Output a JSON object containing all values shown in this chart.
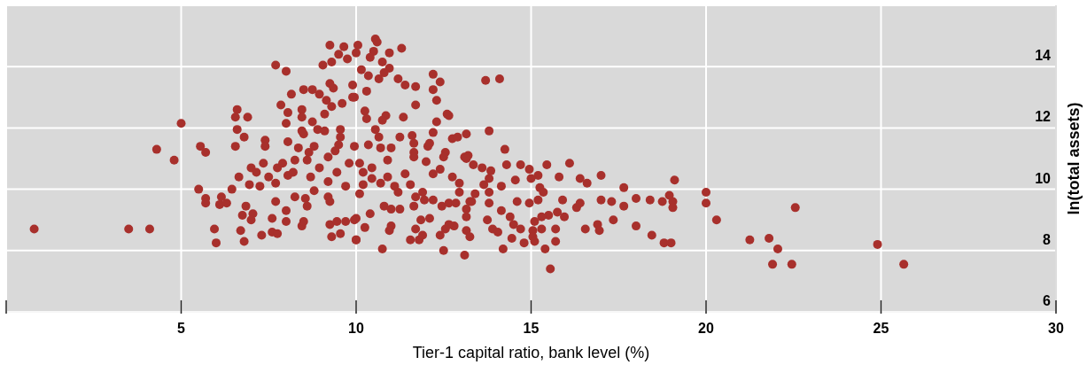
{
  "chart_data": {
    "type": "scatter",
    "xlabel": "Tier-1 capital ratio, bank level (%)",
    "ylabel": "ln(total assets)",
    "color": "#a8302c",
    "marker": "circle",
    "grid": true,
    "xlim": [
      0,
      30
    ],
    "ylim": [
      6,
      16
    ],
    "xticks": [
      {
        "value": 0,
        "label": null
      },
      5,
      10,
      15,
      20,
      25,
      30
    ],
    "yticks": [
      6,
      8,
      10,
      12,
      14,
      {
        "value": 16,
        "label": null
      }
    ],
    "x": [
      0.8,
      3.5,
      4.1,
      4.3,
      4.8,
      5.0,
      5.5,
      5.55,
      5.7,
      5.7,
      5.7,
      5.95,
      6.0,
      6.1,
      6.15,
      6.3,
      6.45,
      6.65,
      6.85,
      6.75,
      7.05,
      7.0,
      6.7,
      6.8,
      7.3,
      7.0,
      7.15,
      6.95,
      7.25,
      7.35,
      7.6,
      7.75,
      7.6,
      7.7,
      8.0,
      8.45,
      8.5,
      9.25,
      9.3,
      9.55,
      10.0,
      7.7,
      8.0,
      8.6,
      8.25,
      9.45,
      9.7,
      9.95,
      9.2,
      7.75,
      8.05,
      8.25,
      8.6,
      6.55,
      6.6,
      6.55,
      6.9,
      6.6,
      6.8,
      7.4,
      7.4,
      7.7,
      8.0,
      8.15,
      7.85,
      8.05,
      8.0,
      8.5,
      8.35,
      8.8,
      8.5,
      8.75,
      8.95,
      9.15,
      9.3,
      9.25,
      9.35,
      8.45,
      8.45,
      8.75,
      8.9,
      9.1,
      9.1,
      9.6,
      9.9,
      9.9,
      9.55,
      9.55,
      9.5,
      9.4,
      9.25,
      9.5,
      9.65,
      9.75,
      9.05,
      9.3,
      10.0,
      10.05,
      10.15,
      8.65,
      9.2,
      10.55,
      10.6,
      10.5,
      10.95,
      11.3,
      10.4,
      10.75,
      10.95,
      10.8,
      10.35,
      10.65,
      11.2,
      11.4,
      11.7,
      12.2,
      12.4,
      12.2,
      12.3,
      11.7,
      13.7,
      14.1,
      10.3,
      9.95,
      10.25,
      10.3,
      10.85,
      10.75,
      11.35,
      12.6,
      12.65,
      12.3,
      13.8,
      10.55,
      10.65,
      11.25,
      11.6,
      11.65,
      12.2,
      12.75,
      12.9,
      13.15,
      14.25,
      12.05,
      12.1,
      11.65,
      11.0,
      10.7,
      10.35,
      9.95,
      12.55,
      13.2,
      13.1,
      10.1,
      10.9,
      11.65,
      12.0,
      12.5,
      13.15,
      13.35,
      13.6,
      13.85,
      14.3,
      14.7,
      14.95,
      15.45,
      16.1,
      15.2,
      15.0,
      15.8,
      16.4,
      16.6,
      17.0,
      17.65,
      19.1,
      18.0,
      18.4,
      18.75,
      18.95,
      19.05,
      19.05,
      17.65,
      17.3,
      17.0,
      16.3,
      16.4,
      15.9,
      15.2,
      14.95,
      14.6,
      13.8,
      13.25,
      17.35,
      16.9,
      16.55,
      16.95,
      18.0,
      18.45,
      18.8,
      19.0,
      15.5,
      15.75,
      15.95,
      15.3,
      15.1,
      15.3,
      15.7,
      15.05,
      15.05,
      15.1,
      15.7,
      15.4,
      15.55,
      14.8,
      14.45,
      14.7,
      14.5,
      14.4,
      14.15,
      13.75,
      13.9,
      14.05,
      14.2,
      13.1,
      12.5,
      13.15,
      13.25,
      13.15,
      13.15,
      13.3,
      13.4,
      12.8,
      12.55,
      12.4,
      12.65,
      11.55,
      11.8,
      11.9,
      11.7,
      11.85,
      12.1,
      11.0,
      10.95,
      10.75,
      10.25,
      10.0,
      10.4,
      10.0,
      10.8,
      11.0,
      11.25,
      11.65,
      12.2,
      12.45,
      12.65,
      12.85,
      12.95,
      11.9,
      11.95,
      11.7,
      11.2,
      11.1,
      10.7,
      10.45,
      10.2,
      10.1,
      11.55,
      12.2,
      12.4,
      12.75,
      12.95,
      13.65,
      13.8,
      13.8,
      14.15,
      14.55,
      15.25,
      15.35,
      11.4,
      10.9,
      20.0,
      20.0,
      20.3,
      22.55,
      21.25,
      21.8,
      22.05,
      21.9,
      22.45,
      24.9,
      25.65,
      7.5,
      7.9,
      8.2,
      8.7,
      8.95,
      9.2,
      9.45,
      9.7,
      8.8,
      8.55,
      9.25,
      9.8,
      10.2,
      10.45,
      8.05,
      8.45
    ],
    "values": [
      8.7,
      8.7,
      8.7,
      11.3,
      10.95,
      12.15,
      10.0,
      11.4,
      9.7,
      11.2,
      9.55,
      8.7,
      8.25,
      9.5,
      9.75,
      9.55,
      10.0,
      10.4,
      9.45,
      9.15,
      9.2,
      9.0,
      8.65,
      8.3,
      8.5,
      10.7,
      10.55,
      10.15,
      10.1,
      10.85,
      8.6,
      8.55,
      9.05,
      9.6,
      8.95,
      8.8,
      8.95,
      8.85,
      8.45,
      8.55,
      8.35,
      10.2,
      9.3,
      9.45,
      9.75,
      8.95,
      8.95,
      9.0,
      9.75,
      10.7,
      10.45,
      10.95,
      10.95,
      11.4,
      12.6,
      12.35,
      12.35,
      11.95,
      11.7,
      11.6,
      11.4,
      14.05,
      13.85,
      13.1,
      12.75,
      12.5,
      12.15,
      11.8,
      11.35,
      11.4,
      13.25,
      13.25,
      13.1,
      12.9,
      12.7,
      13.45,
      13.3,
      12.6,
      12.35,
      12.2,
      11.95,
      11.9,
      12.45,
      12.8,
      13.4,
      13.0,
      11.95,
      11.7,
      11.45,
      11.25,
      14.7,
      14.4,
      14.65,
      14.25,
      14.05,
      14.15,
      14.45,
      14.7,
      13.9,
      11.2,
      11.05,
      14.9,
      14.8,
      14.5,
      14.45,
      14.6,
      14.3,
      14.15,
      13.95,
      13.8,
      13.7,
      13.6,
      13.6,
      13.4,
      13.35,
      13.75,
      13.5,
      13.25,
      12.9,
      12.75,
      13.55,
      13.6,
      13.2,
      13.0,
      12.55,
      12.3,
      12.4,
      12.25,
      12.35,
      12.45,
      12.4,
      12.2,
      11.9,
      11.95,
      11.7,
      11.7,
      11.75,
      11.5,
      11.85,
      11.65,
      11.7,
      11.8,
      11.3,
      11.4,
      11.5,
      11.2,
      11.35,
      11.35,
      11.45,
      11.4,
      11.2,
      11.1,
      11.05,
      10.85,
      10.95,
      11.05,
      10.9,
      11.05,
      11.0,
      10.8,
      10.7,
      10.6,
      10.8,
      10.8,
      10.65,
      10.8,
      10.85,
      10.45,
      10.35,
      10.4,
      10.35,
      10.2,
      10.45,
      10.05,
      10.3,
      9.7,
      9.65,
      9.6,
      9.8,
      9.6,
      9.4,
      9.45,
      9.6,
      9.65,
      9.4,
      9.55,
      9.65,
      9.65,
      9.55,
      9.6,
      9.55,
      9.6,
      9.0,
      8.85,
      8.7,
      8.65,
      8.8,
      8.5,
      8.25,
      8.25,
      9.15,
      9.25,
      9.1,
      9.1,
      8.95,
      8.7,
      8.7,
      8.65,
      8.45,
      8.3,
      8.3,
      8.05,
      7.4,
      8.25,
      8.4,
      8.7,
      8.85,
      9.1,
      9.3,
      9.0,
      8.7,
      8.6,
      8.05,
      7.85,
      8.0,
      8.65,
      8.45,
      9.1,
      9.35,
      9.6,
      9.85,
      8.8,
      8.7,
      8.5,
      8.85,
      8.35,
      8.35,
      8.5,
      8.7,
      9.0,
      9.05,
      8.8,
      8.65,
      8.05,
      8.75,
      8.35,
      9.2,
      9.05,
      9.45,
      9.35,
      9.35,
      9.45,
      9.65,
      9.45,
      9.55,
      9.55,
      9.9,
      9.9,
      9.65,
      9.75,
      9.9,
      10.1,
      10.2,
      10.35,
      10.15,
      9.85,
      10.15,
      10.5,
      10.65,
      10.4,
      10.2,
      10.15,
      9.9,
      10.35,
      10.1,
      10.3,
      10.05,
      9.9,
      10.5,
      10.4,
      9.9,
      9.55,
      9.0,
      9.4,
      8.35,
      8.4,
      8.05,
      7.55,
      7.55,
      8.2,
      7.55,
      10.4,
      10.85,
      10.55,
      10.4,
      10.7,
      10.25,
      10.55,
      10.1,
      9.95,
      9.7,
      9.6,
      10.85,
      10.55,
      10.7,
      11.55,
      11.9
    ]
  }
}
